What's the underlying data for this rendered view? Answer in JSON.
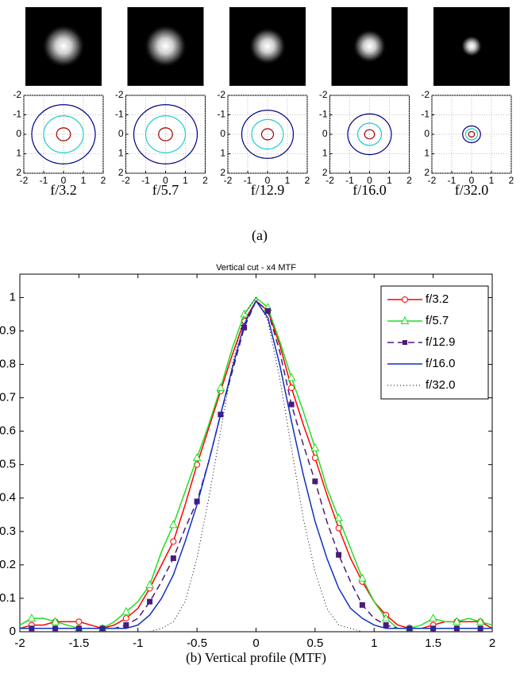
{
  "panel_label": "(a)",
  "chart_data": [
    {
      "type": "contour",
      "title": "f/3.2",
      "xlim": [
        -2,
        2
      ],
      "ylim": [
        -2,
        2
      ],
      "y_reversed": true,
      "xticks": [
        -2,
        -1,
        0,
        1,
        2
      ],
      "yticks": [
        -2,
        -1,
        0,
        1,
        2
      ],
      "grid": true,
      "contour_radii": [
        0.35,
        1.0,
        1.6
      ],
      "contour_colors": [
        "#a00000",
        "#22cccc",
        "#000080"
      ]
    },
    {
      "type": "contour",
      "title": "f/5.7",
      "xlim": [
        -2,
        2
      ],
      "ylim": [
        -2,
        2
      ],
      "y_reversed": true,
      "xticks": [
        -2,
        -1,
        0,
        1,
        2
      ],
      "yticks": [
        -2,
        -1,
        0,
        1,
        2
      ],
      "grid": true,
      "contour_radii": [
        0.35,
        1.0,
        1.6
      ],
      "contour_colors": [
        "#a00000",
        "#22cccc",
        "#000080"
      ]
    },
    {
      "type": "contour",
      "title": "f/12.9",
      "xlim": [
        -2,
        2
      ],
      "ylim": [
        -2,
        2
      ],
      "y_reversed": true,
      "xticks": [
        -2,
        -1,
        0,
        1,
        2
      ],
      "yticks": [
        -2,
        -1,
        0,
        1,
        2
      ],
      "grid": true,
      "contour_radii": [
        0.3,
        0.8,
        1.3
      ],
      "contour_colors": [
        "#a00000",
        "#22cccc",
        "#000080"
      ]
    },
    {
      "type": "contour",
      "title": "f/16.0",
      "xlim": [
        -2,
        2
      ],
      "ylim": [
        -2,
        2
      ],
      "y_reversed": true,
      "xticks": [
        -2,
        -1,
        0,
        1,
        2
      ],
      "yticks": [
        -2,
        -1,
        0,
        1,
        2
      ],
      "grid": true,
      "contour_radii": [
        0.25,
        0.6,
        1.1
      ],
      "contour_colors": [
        "#a00000",
        "#22cccc",
        "#000080"
      ]
    },
    {
      "type": "contour",
      "title": "f/32.0",
      "xlim": [
        -2,
        2
      ],
      "ylim": [
        -2,
        2
      ],
      "y_reversed": true,
      "xticks": [
        -2,
        -1,
        0,
        1,
        2
      ],
      "yticks": [
        -2,
        -1,
        0,
        1,
        2
      ],
      "grid": true,
      "contour_radii": [
        0.15,
        0.3,
        0.45
      ],
      "contour_colors": [
        "#a00000",
        "#22cccc",
        "#000080"
      ]
    },
    {
      "type": "line",
      "title": "Vertical cut - x4 MTF",
      "xlabel": "(b) Vertical profile (MTF)",
      "xlim": [
        -2,
        2
      ],
      "ylim": [
        0,
        1.07
      ],
      "xticks": [
        -2,
        -1.5,
        -1,
        -0.5,
        0,
        0.5,
        1,
        1.5,
        2
      ],
      "yticks": [
        0,
        0.1,
        0.2,
        0.3,
        0.4,
        0.5,
        0.6,
        0.7,
        0.8,
        0.9,
        1
      ],
      "legend": "upper right",
      "x": [
        -2,
        -1.9,
        -1.8,
        -1.7,
        -1.6,
        -1.5,
        -1.4,
        -1.3,
        -1.2,
        -1.1,
        -1,
        -0.9,
        -0.8,
        -0.7,
        -0.6,
        -0.5,
        -0.4,
        -0.3,
        -0.2,
        -0.1,
        0,
        0.1,
        0.2,
        0.3,
        0.4,
        0.5,
        0.6,
        0.7,
        0.8,
        0.9,
        1,
        1.1,
        1.2,
        1.3,
        1.4,
        1.5,
        1.6,
        1.7,
        1.8,
        1.9,
        2
      ],
      "series": [
        {
          "name": "f/3.2",
          "color": "#ff0000",
          "marker": "circle",
          "dash": "solid",
          "values": [
            0.01,
            0.02,
            0.02,
            0.03,
            0.03,
            0.03,
            0.02,
            0.01,
            0.02,
            0.04,
            0.07,
            0.13,
            0.2,
            0.27,
            0.38,
            0.5,
            0.61,
            0.72,
            0.83,
            0.93,
            0.99,
            0.96,
            0.86,
            0.73,
            0.62,
            0.52,
            0.41,
            0.31,
            0.22,
            0.15,
            0.09,
            0.05,
            0.02,
            0.01,
            0.01,
            0.02,
            0.03,
            0.03,
            0.03,
            0.03,
            0.01
          ]
        },
        {
          "name": "f/5.7",
          "color": "#22dd22",
          "marker": "triangle",
          "dash": "solid",
          "values": [
            0.02,
            0.04,
            0.04,
            0.03,
            0.02,
            0.01,
            0.01,
            0.01,
            0.03,
            0.06,
            0.09,
            0.14,
            0.24,
            0.32,
            0.42,
            0.52,
            0.62,
            0.73,
            0.85,
            0.95,
            1.0,
            0.97,
            0.87,
            0.76,
            0.66,
            0.55,
            0.43,
            0.34,
            0.25,
            0.16,
            0.09,
            0.04,
            0.01,
            0.01,
            0.02,
            0.04,
            0.03,
            0.03,
            0.04,
            0.03,
            0.02
          ]
        },
        {
          "name": "f/12.9",
          "color": "#4b1a7a",
          "marker": "square",
          "dash": "dashed",
          "values": [
            0.01,
            0.01,
            0.01,
            0.01,
            0.01,
            0.01,
            0.01,
            0.01,
            0.01,
            0.02,
            0.04,
            0.09,
            0.15,
            0.22,
            0.31,
            0.39,
            0.51,
            0.65,
            0.78,
            0.91,
            0.99,
            0.96,
            0.84,
            0.68,
            0.56,
            0.45,
            0.33,
            0.23,
            0.15,
            0.08,
            0.04,
            0.02,
            0.01,
            0.01,
            0.01,
            0.01,
            0.01,
            0.01,
            0.01,
            0.01,
            0.01
          ]
        },
        {
          "name": "f/16.0",
          "color": "#1030c0",
          "marker": "none",
          "dash": "solid",
          "values": [
            0.01,
            0.01,
            0.01,
            0.01,
            0.01,
            0.01,
            0.01,
            0.01,
            0.01,
            0.01,
            0.02,
            0.05,
            0.1,
            0.17,
            0.27,
            0.38,
            0.51,
            0.65,
            0.79,
            0.92,
            0.99,
            0.94,
            0.8,
            0.63,
            0.47,
            0.33,
            0.22,
            0.13,
            0.07,
            0.04,
            0.02,
            0.01,
            0.01,
            0.01,
            0.01,
            0.01,
            0.01,
            0.01,
            0.01,
            0.01,
            0.01
          ]
        },
        {
          "name": "f/32.0",
          "color": "#000000",
          "marker": "none",
          "dash": "dotted",
          "values": [
            0,
            0,
            0,
            0,
            0,
            0,
            0,
            0,
            0,
            0,
            0,
            0,
            0.01,
            0.03,
            0.09,
            0.22,
            0.4,
            0.6,
            0.8,
            0.95,
            1.0,
            0.93,
            0.76,
            0.55,
            0.34,
            0.18,
            0.07,
            0.02,
            0.01,
            0,
            0,
            0,
            0,
            0,
            0,
            0,
            0,
            0,
            0,
            0,
            0
          ]
        }
      ]
    }
  ]
}
